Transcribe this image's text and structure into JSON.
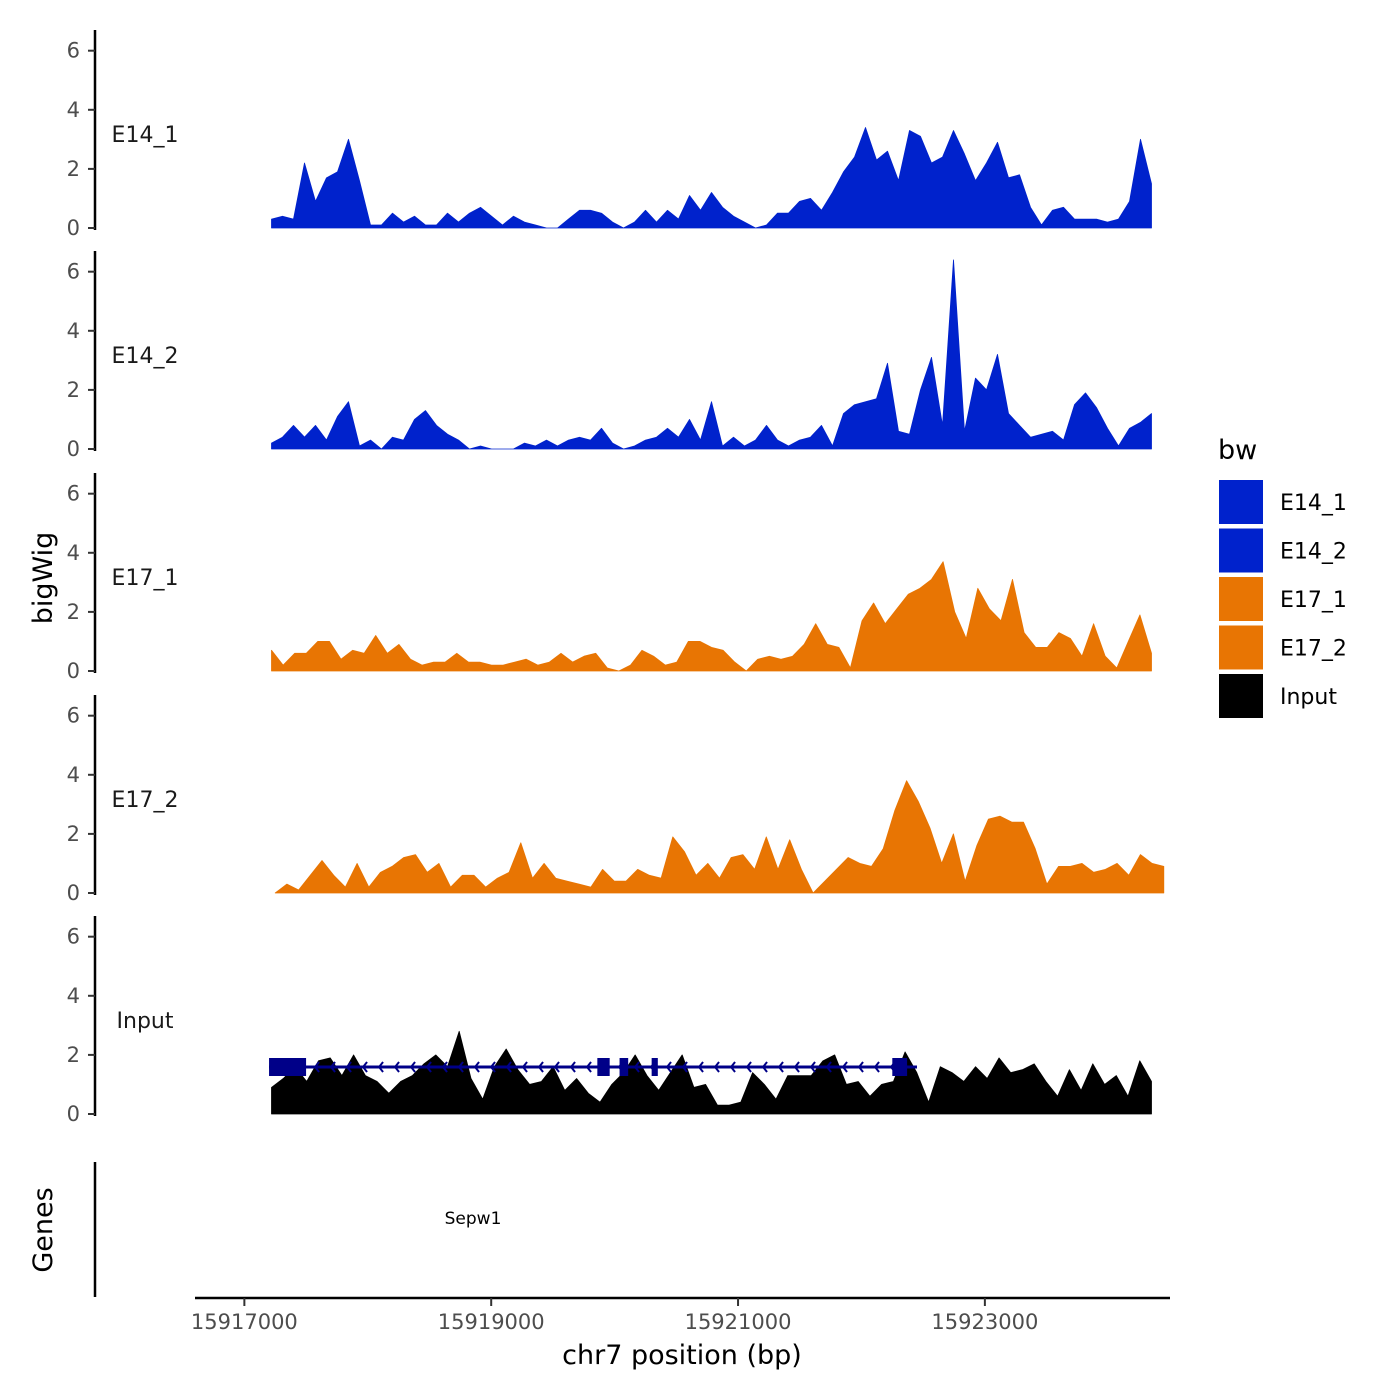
{
  "chart_data": {
    "type": "area",
    "ylabel": "bigWig",
    "ylim": [
      0,
      6.7
    ],
    "yticks": [
      0,
      2,
      4,
      6
    ],
    "x_range": [
      15917000,
      15924450
    ],
    "xlim": [
      15916600,
      15924500
    ],
    "xticks": [
      15917000,
      15919000,
      15921000,
      15923000
    ],
    "xtick_labels": [
      "15917000",
      "15919000",
      "15921000",
      "15923000"
    ],
    "xlabel": "chr7 position (bp)",
    "legend": {
      "title": "bw",
      "entries": [
        {
          "label": "E14_1",
          "color": "#0022CC"
        },
        {
          "label": "E14_2",
          "color": "#0022CC"
        },
        {
          "label": "E17_1",
          "color": "#E87503"
        },
        {
          "label": "E17_2",
          "color": "#E87503"
        },
        {
          "label": "Input",
          "color": "#000000"
        }
      ],
      "position": "right"
    },
    "tracks": [
      {
        "name": "E14_1",
        "color": "#0022CC",
        "x_start": 15917220,
        "x_end": 15924350,
        "values": [
          0.3,
          0.4,
          0.3,
          2.2,
          0.9,
          1.7,
          1.9,
          3.0,
          1.6,
          0.1,
          0.1,
          0.5,
          0.2,
          0.4,
          0.1,
          0.1,
          0.5,
          0.2,
          0.5,
          0.7,
          0.4,
          0.1,
          0.4,
          0.2,
          0.1,
          0.0,
          0.0,
          0.3,
          0.6,
          0.6,
          0.5,
          0.2,
          0.0,
          0.2,
          0.6,
          0.2,
          0.6,
          0.3,
          1.1,
          0.6,
          1.2,
          0.7,
          0.4,
          0.2,
          0.0,
          0.1,
          0.5,
          0.5,
          0.9,
          1.0,
          0.6,
          1.2,
          1.9,
          2.4,
          3.4,
          2.3,
          2.6,
          1.6,
          3.3,
          3.1,
          2.2,
          2.4,
          3.3,
          2.5,
          1.6,
          2.2,
          2.9,
          1.7,
          1.8,
          0.7,
          0.1,
          0.6,
          0.7,
          0.3,
          0.3,
          0.3,
          0.2,
          0.3,
          0.9,
          3.0,
          1.5
        ]
      },
      {
        "name": "E14_2",
        "color": "#0022CC",
        "x_start": 15917220,
        "x_end": 15924350,
        "values": [
          0.2,
          0.4,
          0.8,
          0.4,
          0.8,
          0.3,
          1.1,
          1.6,
          0.1,
          0.3,
          0.0,
          0.4,
          0.3,
          1.0,
          1.3,
          0.8,
          0.5,
          0.3,
          0.0,
          0.1,
          0.0,
          0.0,
          0.0,
          0.2,
          0.1,
          0.3,
          0.1,
          0.3,
          0.4,
          0.3,
          0.7,
          0.2,
          0.0,
          0.1,
          0.3,
          0.4,
          0.7,
          0.4,
          1.0,
          0.3,
          1.6,
          0.1,
          0.4,
          0.1,
          0.3,
          0.8,
          0.3,
          0.1,
          0.3,
          0.4,
          0.8,
          0.1,
          1.2,
          1.5,
          1.6,
          1.7,
          2.9,
          0.6,
          0.5,
          2.0,
          3.1,
          0.8,
          6.4,
          0.6,
          2.4,
          2.0,
          3.2,
          1.2,
          0.8,
          0.4,
          0.5,
          0.6,
          0.3,
          1.5,
          1.9,
          1.4,
          0.7,
          0.1,
          0.7,
          0.9,
          1.2
        ]
      },
      {
        "name": "E17_1",
        "color": "#E87503",
        "x_start": 15917220,
        "x_end": 15924350,
        "values": [
          0.7,
          0.2,
          0.6,
          0.6,
          1.0,
          1.0,
          0.4,
          0.7,
          0.6,
          1.2,
          0.6,
          0.9,
          0.4,
          0.2,
          0.3,
          0.3,
          0.6,
          0.3,
          0.3,
          0.2,
          0.2,
          0.3,
          0.4,
          0.2,
          0.3,
          0.6,
          0.3,
          0.5,
          0.6,
          0.1,
          0.0,
          0.2,
          0.7,
          0.5,
          0.2,
          0.3,
          1.0,
          1.0,
          0.8,
          0.7,
          0.3,
          0.0,
          0.4,
          0.5,
          0.4,
          0.5,
          0.9,
          1.6,
          0.9,
          0.8,
          0.1,
          1.7,
          2.3,
          1.6,
          2.1,
          2.6,
          2.8,
          3.1,
          3.7,
          2.0,
          1.1,
          2.8,
          2.1,
          1.7,
          3.1,
          1.3,
          0.8,
          0.8,
          1.3,
          1.1,
          0.5,
          1.6,
          0.5,
          0.1,
          1.0,
          1.9,
          0.6
        ]
      },
      {
        "name": "E17_2",
        "color": "#E87503",
        "x_start": 15917250,
        "x_end": 15924450,
        "values": [
          0.0,
          0.3,
          0.1,
          0.6,
          1.1,
          0.6,
          0.2,
          1.0,
          0.2,
          0.7,
          0.9,
          1.2,
          1.3,
          0.7,
          1.0,
          0.2,
          0.6,
          0.6,
          0.2,
          0.5,
          0.7,
          1.7,
          0.5,
          1.0,
          0.5,
          0.4,
          0.3,
          0.2,
          0.8,
          0.4,
          0.4,
          0.8,
          0.6,
          0.5,
          1.9,
          1.4,
          0.6,
          1.0,
          0.5,
          1.2,
          1.3,
          0.8,
          1.9,
          0.8,
          1.8,
          0.8,
          0.0,
          0.4,
          0.8,
          1.2,
          1.0,
          0.9,
          1.5,
          2.8,
          3.8,
          3.1,
          2.2,
          1.0,
          2.0,
          0.4,
          1.6,
          2.5,
          2.6,
          2.4,
          2.4,
          1.5,
          0.3,
          0.9,
          0.9,
          1.0,
          0.7,
          0.8,
          1.0,
          0.6,
          1.3,
          1.0,
          0.9
        ]
      },
      {
        "name": "Input",
        "color": "#000000",
        "x_start": 15917220,
        "x_end": 15924350,
        "values": [
          0.9,
          1.2,
          1.6,
          1.1,
          1.8,
          1.9,
          1.3,
          2.0,
          1.3,
          1.1,
          0.7,
          1.1,
          1.3,
          1.7,
          2.0,
          1.6,
          2.8,
          1.2,
          0.5,
          1.6,
          2.2,
          1.5,
          1.0,
          1.1,
          1.6,
          0.8,
          1.2,
          0.7,
          0.4,
          1.0,
          1.4,
          2.0,
          1.3,
          0.8,
          1.4,
          2.0,
          0.9,
          1.0,
          0.3,
          0.3,
          0.4,
          1.4,
          1.0,
          0.5,
          1.3,
          1.3,
          1.3,
          1.8,
          2.0,
          1.0,
          1.1,
          0.6,
          1.0,
          1.1,
          2.1,
          1.4,
          0.4,
          1.6,
          1.4,
          1.1,
          1.6,
          1.2,
          1.9,
          1.4,
          1.5,
          1.7,
          1.1,
          0.6,
          1.5,
          0.8,
          1.7,
          1.0,
          1.3,
          0.6,
          1.8,
          1.1
        ]
      }
    ],
    "genes": {
      "title": "Genes",
      "color": "#000088",
      "items": [
        {
          "name": "Sepw1",
          "start": 15917200,
          "end": 15922450,
          "strand": "-",
          "exons": [
            [
              15917200,
              15917500
            ],
            [
              15919860,
              15919960
            ],
            [
              15920040,
              15920110
            ],
            [
              15920300,
              15920350
            ],
            [
              15922250,
              15922370
            ]
          ]
        }
      ]
    }
  }
}
